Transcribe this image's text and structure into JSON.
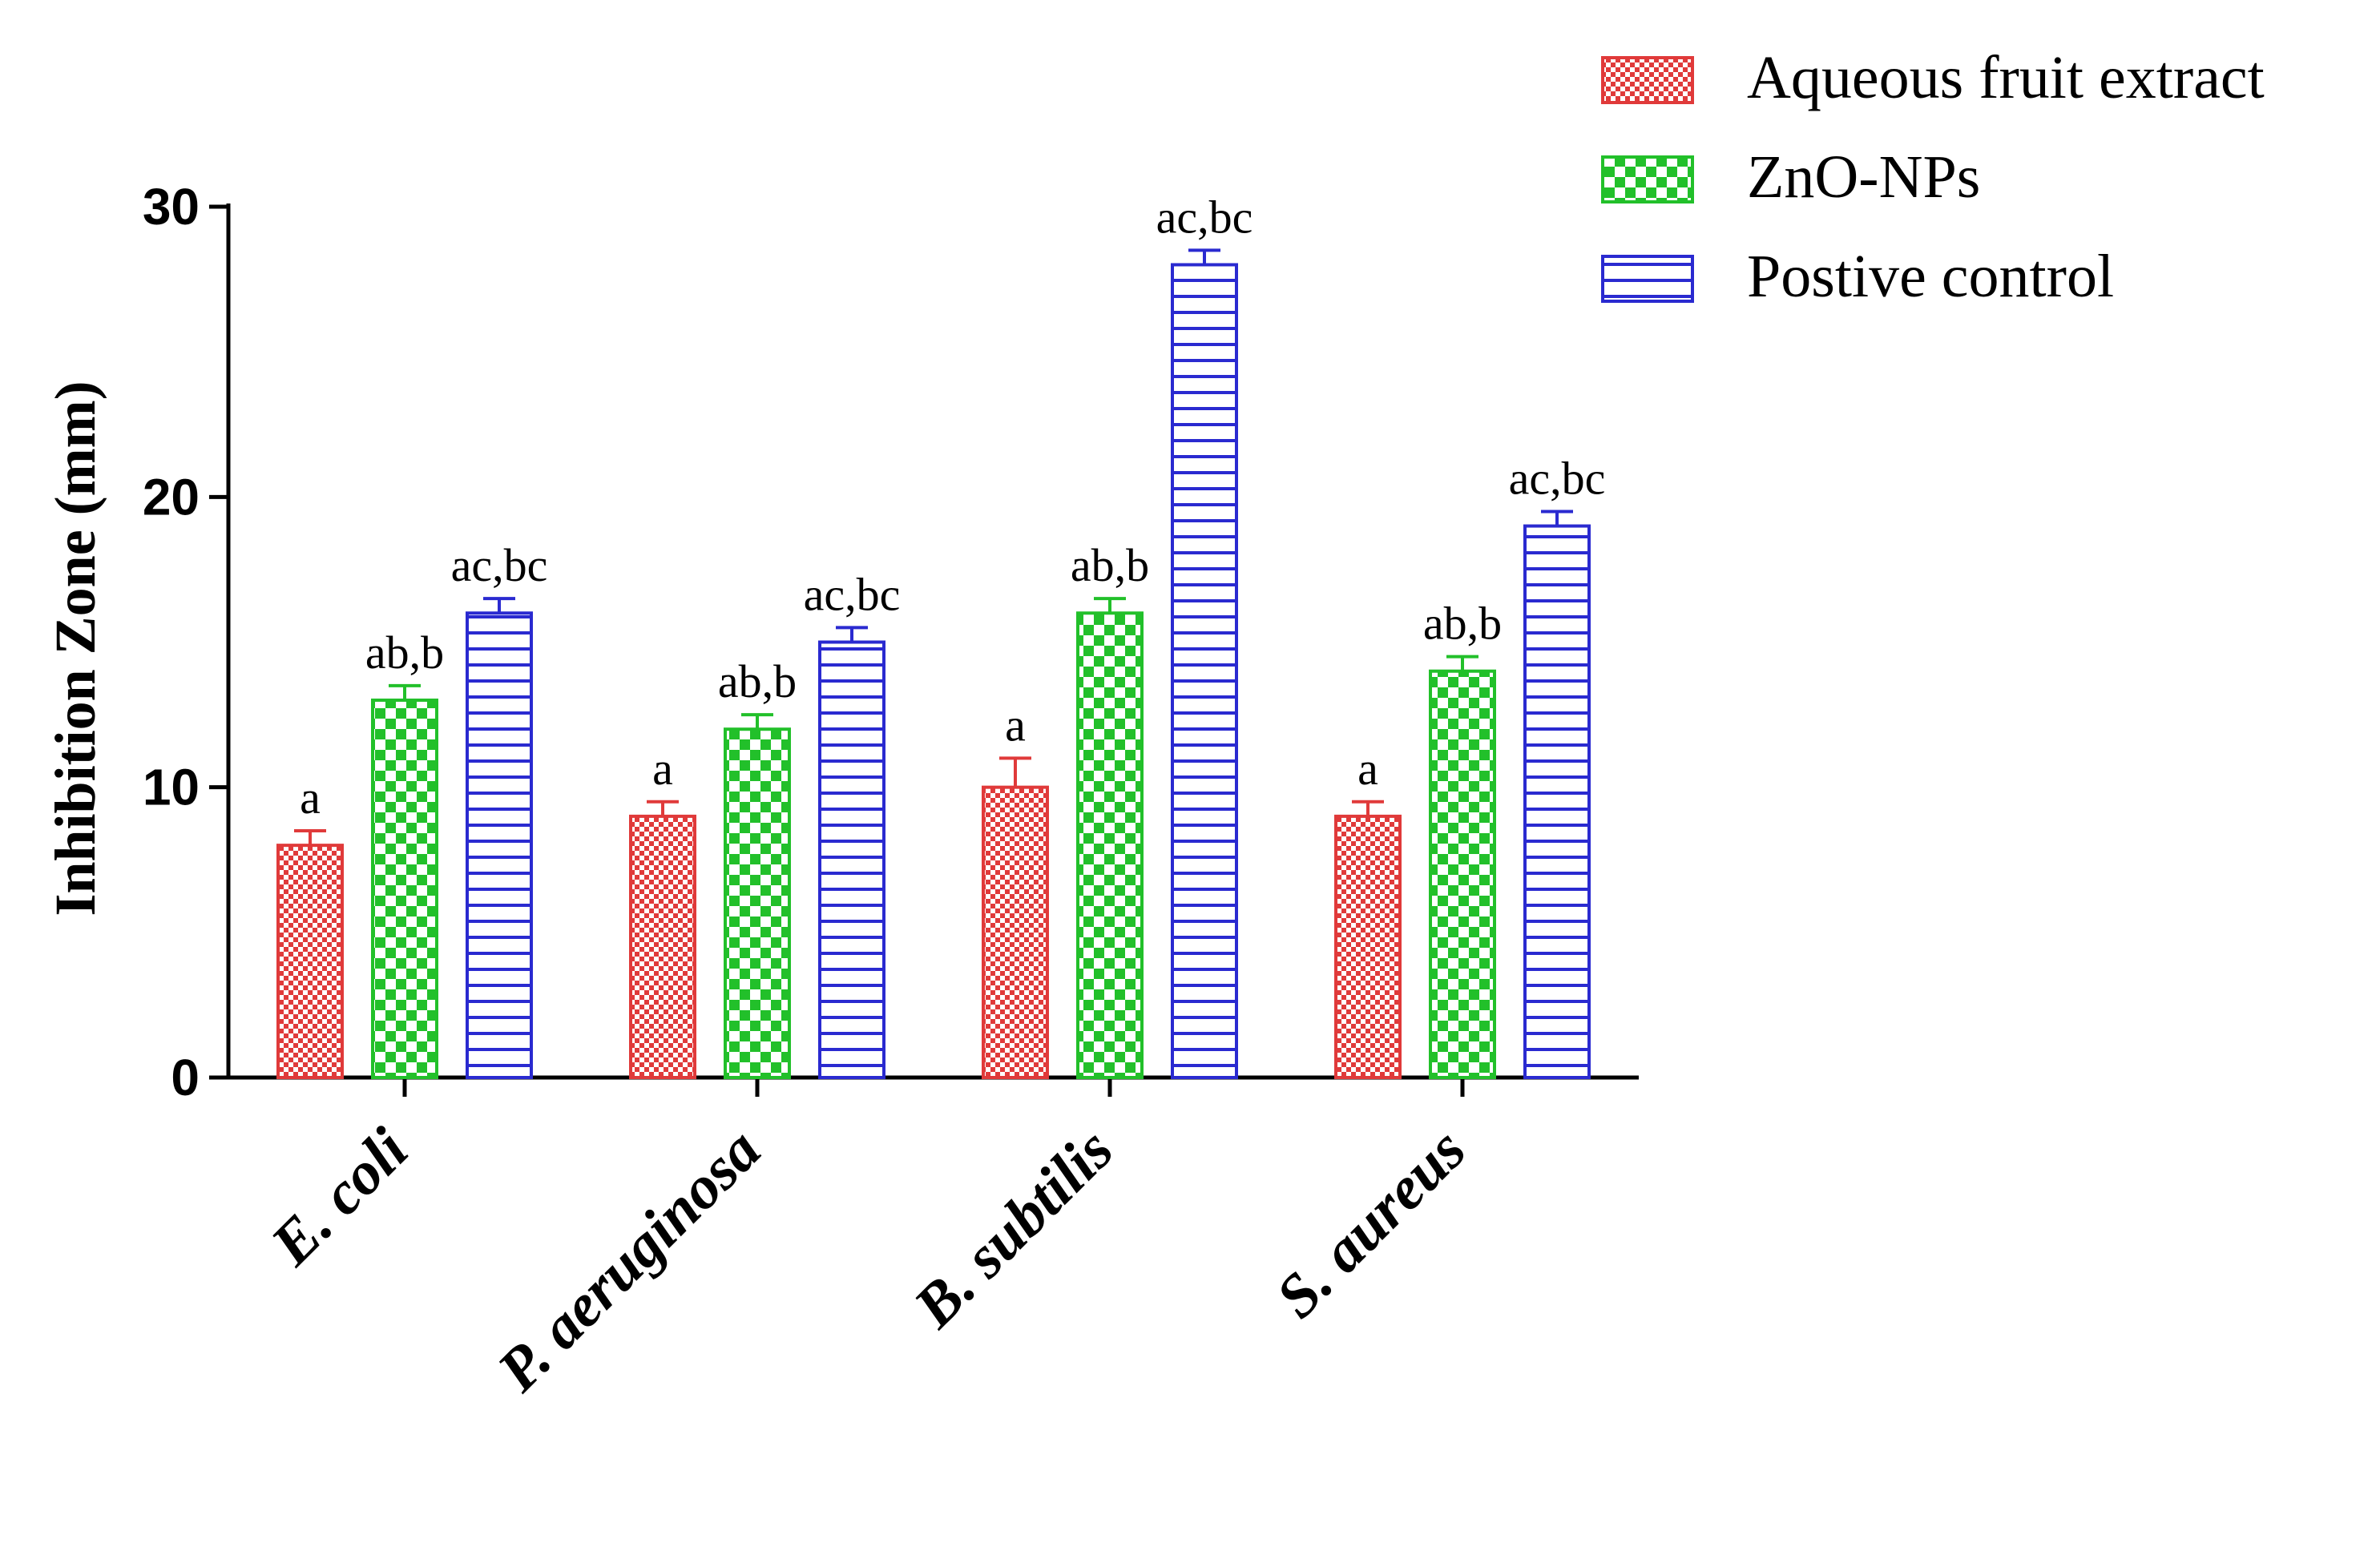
{
  "chart_data": {
    "type": "bar",
    "title": "",
    "xlabel": "",
    "ylabel": "Inhibition Zone (mm)",
    "ylim": [
      0,
      30
    ],
    "yticks": [
      0,
      10,
      20,
      30
    ],
    "categories": [
      "E. coli",
      "P. aeruginosa",
      "B. subtilis",
      "S. aureus"
    ],
    "series": [
      {
        "name": "Aqueous fruit extract",
        "color": "#e03a3a",
        "pattern": "checker-small",
        "values": [
          8,
          9,
          10,
          9
        ],
        "errors": [
          0.5,
          0.5,
          1.0,
          0.5
        ],
        "annotations": [
          "a",
          "a",
          "a",
          "a"
        ]
      },
      {
        "name": "ZnO-NPs",
        "color": "#22c02a",
        "pattern": "checker-large",
        "values": [
          13,
          12,
          16,
          14
        ],
        "errors": [
          0.5,
          0.5,
          0.5,
          0.5
        ],
        "annotations": [
          "ab,b",
          "ab,b",
          "ab,b",
          "ab,b"
        ]
      },
      {
        "name": "Postive control",
        "color": "#2a2ad0",
        "pattern": "horizontal-lines",
        "values": [
          16,
          15,
          28,
          19
        ],
        "errors": [
          0.5,
          0.5,
          0.5,
          0.5
        ],
        "annotations": [
          "ac,bc",
          "ac,bc",
          "ac,bc",
          "ac,bc"
        ]
      }
    ],
    "grid": false,
    "legend_position": "top-right"
  }
}
